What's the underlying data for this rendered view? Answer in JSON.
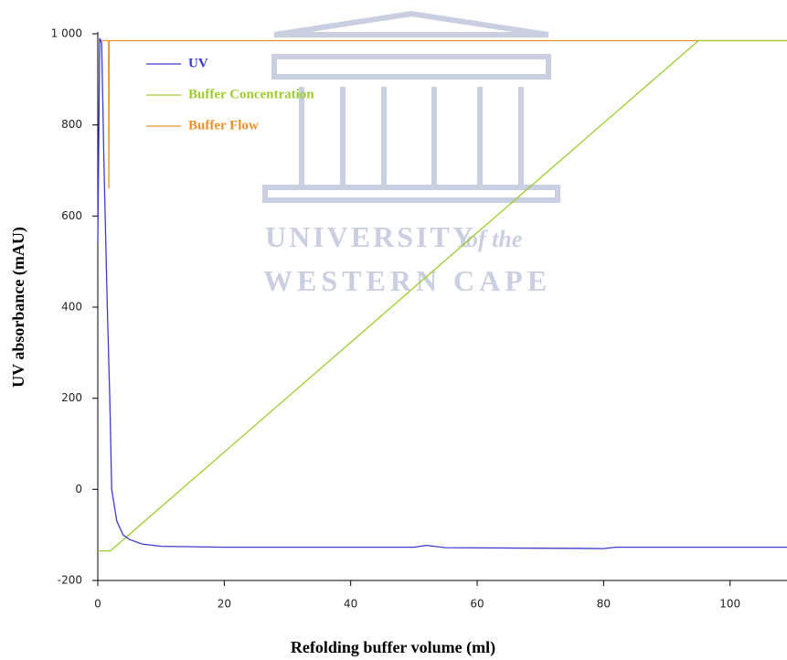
{
  "chart_data": {
    "type": "line",
    "x_label": "Refolding buffer volume (ml)",
    "y_label": "UV absorbance (mAU)",
    "xlim": [
      0,
      109
    ],
    "ylim": [
      -200,
      1000
    ],
    "xticks": [
      0,
      20,
      40,
      60,
      80,
      100
    ],
    "yticks": [
      -200,
      0,
      200,
      400,
      600,
      800,
      {
        "value": 1000,
        "label": "1 000"
      }
    ],
    "legend": "upper left",
    "watermark": {
      "line1": "UNIVERSITY",
      "line1b": "of the",
      "line2": "WESTERN CAPE"
    },
    "series": [
      {
        "name": "UV",
        "color": "#3a3ad0",
        "x": [
          0,
          0.3,
          0.6,
          1,
          1.5,
          1.9,
          2.2,
          3,
          4,
          5,
          7,
          10,
          20,
          50,
          52,
          55,
          80,
          82,
          109
        ],
        "values": [
          540,
          990,
          980,
          700,
          400,
          200,
          0,
          -70,
          -100,
          -110,
          -120,
          -125,
          -127,
          -127,
          -123,
          -128,
          -130,
          -127,
          -127
        ]
      },
      {
        "name": "Buffer Concentration",
        "color": "#9ccc2e",
        "x": [
          0,
          2,
          95,
          109
        ],
        "values": [
          -135,
          -135,
          985,
          985
        ]
      },
      {
        "name": "Buffer Flow",
        "color": "#e8902a",
        "x": [
          0,
          1.7,
          1.75,
          1.8,
          109
        ],
        "values": [
          985,
          985,
          660,
          985,
          985
        ]
      }
    ]
  }
}
